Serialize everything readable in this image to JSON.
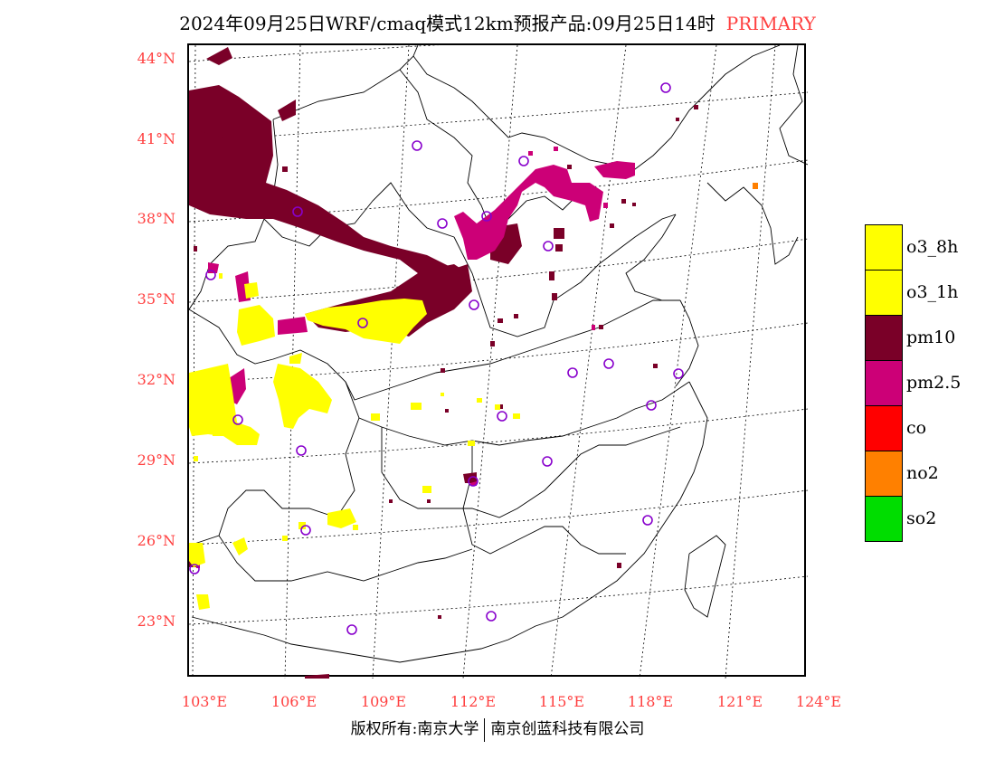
{
  "title": {
    "text": "2024年09月25日WRF/cmaq模式12km预报产品:09月25日14时",
    "tag": "PRIMARY"
  },
  "axes": {
    "lat_labels": [
      "44°N",
      "41°N",
      "38°N",
      "35°N",
      "32°N",
      "29°N",
      "26°N",
      "23°N"
    ],
    "lon_labels": [
      "103°E",
      "106°E",
      "109°E",
      "112°E",
      "115°E",
      "118°E",
      "121°E",
      "124°E"
    ]
  },
  "legend": [
    {
      "label": "o3_8h",
      "color": "#ffff00"
    },
    {
      "label": "o3_1h",
      "color": "#ffff00"
    },
    {
      "label": "pm10",
      "color": "#7a0028"
    },
    {
      "label": "pm2.5",
      "color": "#cc0077"
    },
    {
      "label": "co",
      "color": "#ff0000"
    },
    {
      "label": "no2",
      "color": "#ff8000"
    },
    {
      "label": "so2",
      "color": "#00dd00"
    }
  ],
  "colors": {
    "pm10": "#7a0028",
    "pm25": "#cc0077",
    "o3": "#ffff00",
    "no2": "#ff8000",
    "station": "#8800cc",
    "label": "#ff4040"
  },
  "footer": {
    "left": "版权所有:南京大学",
    "right": "南京创蓝科技有限公司"
  }
}
